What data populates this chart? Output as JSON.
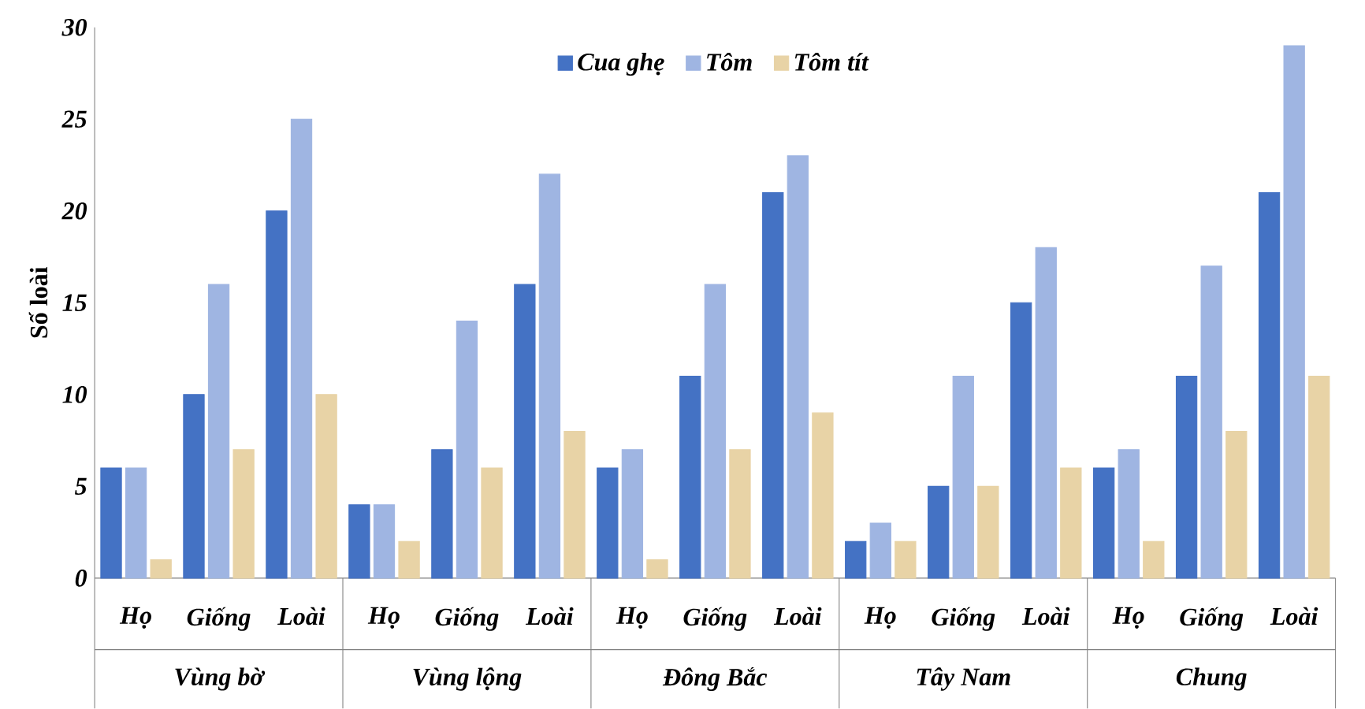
{
  "chart_data": {
    "type": "bar",
    "ylabel": "Số loài",
    "categories": [
      "Họ",
      "Giống",
      "Loài",
      "Họ",
      "Giống",
      "Loài",
      "Họ",
      "Giống",
      "Loài",
      "Họ",
      "Giống",
      "Loài",
      "Họ",
      "Giống",
      "Loài"
    ],
    "series": [
      {
        "name": "Cua ghẹ",
        "color": "#4472c4",
        "values": [
          6,
          10,
          20,
          4,
          7,
          16,
          6,
          11,
          21,
          2,
          5,
          15,
          6,
          11,
          21
        ]
      },
      {
        "name": "Tôm",
        "color": "#9fb5e2",
        "values": [
          6,
          16,
          25,
          4,
          14,
          22,
          7,
          16,
          23,
          3,
          11,
          18,
          7,
          17,
          29
        ]
      },
      {
        "name": "Tôm tít",
        "color": "#e8d3a6",
        "values": [
          1,
          7,
          10,
          2,
          6,
          8,
          1,
          7,
          9,
          2,
          5,
          6,
          2,
          8,
          11
        ]
      }
    ],
    "annotations": [
      "Vùng bờ",
      "Vùng lộng",
      "Đông Bắc",
      "Tây Nam",
      "Chung"
    ],
    "ylim": [
      0,
      30
    ],
    "yticks": [
      0,
      5,
      10,
      15,
      20,
      25,
      30
    ],
    "grid": false,
    "legend": "top"
  }
}
